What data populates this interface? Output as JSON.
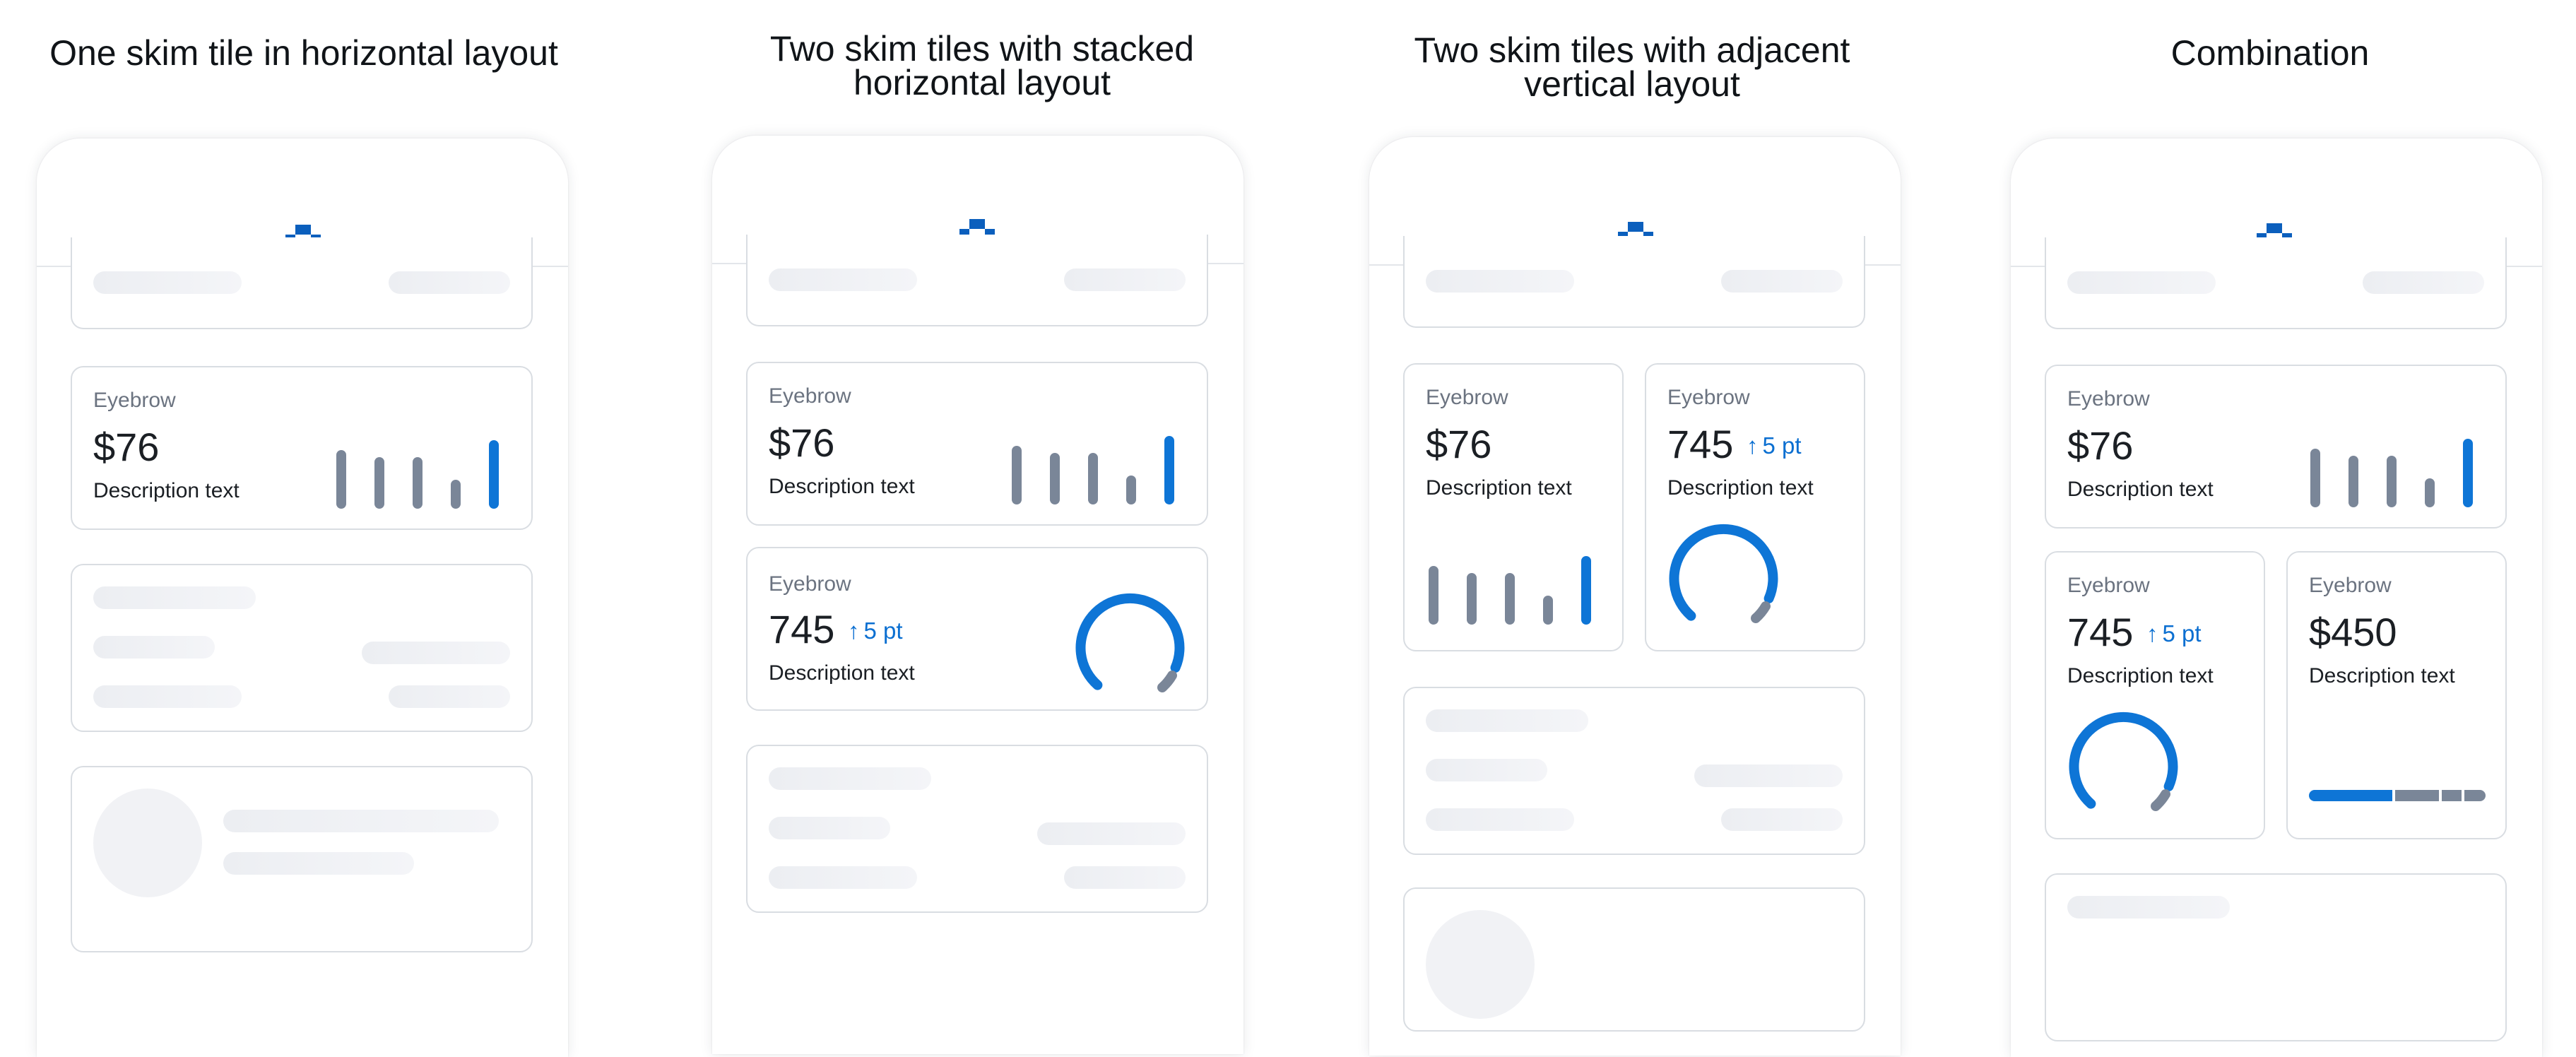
{
  "columns": [
    {
      "title": "One skim tile in horizontal layout"
    },
    {
      "title_line1": "Two skim tiles with stacked",
      "title_line2": "horizontal layout"
    },
    {
      "title_line1": "Two skim tiles with adjacent",
      "title_line2": "vertical layout"
    },
    {
      "title": "Combination"
    }
  ],
  "tile_spend": {
    "eyebrow": "Eyebrow",
    "value": "$76",
    "description": "Description text",
    "bars": [
      0.75,
      0.66,
      0.66,
      0.37,
      0.88
    ],
    "highlight_index": 4
  },
  "tile_score": {
    "eyebrow": "Eyebrow",
    "value": "745",
    "arrow": "↑",
    "delta": "5 pt",
    "description": "Description text"
  },
  "tile_balance": {
    "eyebrow": "Eyebrow",
    "value": "$450",
    "description": "Description text"
  },
  "colors": {
    "accent": "#0e75d6",
    "neutral": "#7a8698",
    "logo": "#0b5fbd",
    "skeleton": "#eceef2"
  },
  "icons": {
    "brand": "chase-octagon-icon"
  }
}
